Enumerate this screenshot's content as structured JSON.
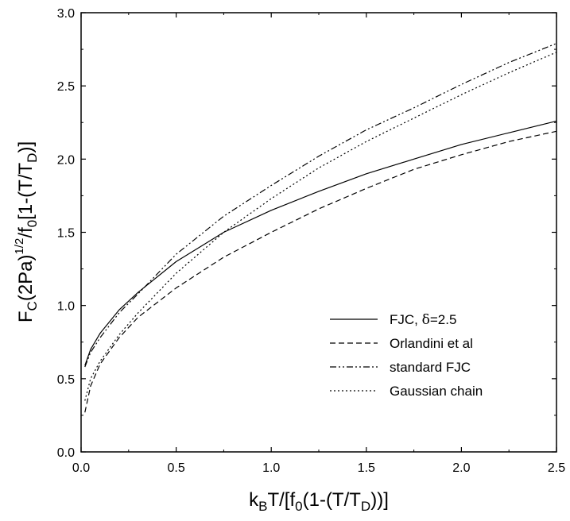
{
  "chart_data": {
    "type": "line",
    "xlim": [
      0.0,
      2.5
    ],
    "ylim": [
      0.0,
      3.0
    ],
    "x_ticks": [
      "0.0",
      "0.5",
      "1.0",
      "1.5",
      "2.0",
      "2.5"
    ],
    "y_ticks": [
      "0.0",
      "0.5",
      "1.0",
      "1.5",
      "2.0",
      "2.5",
      "3.0"
    ],
    "xlabel": {
      "main": "k",
      "sub1": "B",
      "mid": "T/[f",
      "sub2": "0",
      "mid2": "(1-(T/T",
      "sub3": "D",
      "end": "))]"
    },
    "ylabel": {
      "main": "F",
      "sub1": "C",
      "mid": "(2Pa)",
      "sup": "1/2",
      "mid2": "/f",
      "sub2": "0",
      "mid3": "[1-(T/T",
      "sub3": "D",
      "end": ")]"
    },
    "legend": {
      "position": "lower-right",
      "entries": [
        {
          "prefix": "FJC, ",
          "symbol": "δ",
          "suffix": "=2.5",
          "style": "solid"
        },
        {
          "prefix": "Orlandini et al",
          "symbol": "",
          "suffix": "",
          "style": "dash"
        },
        {
          "prefix": "standard FJC",
          "symbol": "",
          "suffix": "",
          "style": "dashdotdot"
        },
        {
          "prefix": "Gaussian chain",
          "symbol": "",
          "suffix": "",
          "style": "dot"
        }
      ]
    },
    "series": [
      {
        "style": "solid",
        "x": [
          0.02,
          0.05,
          0.1,
          0.2,
          0.3,
          0.5,
          0.75,
          1.0,
          1.25,
          1.5,
          1.75,
          2.0,
          2.25,
          2.5
        ],
        "y": [
          0.59,
          0.7,
          0.81,
          0.97,
          1.09,
          1.3,
          1.5,
          1.65,
          1.78,
          1.9,
          2.0,
          2.1,
          2.18,
          2.26
        ]
      },
      {
        "style": "dash",
        "x": [
          0.02,
          0.05,
          0.1,
          0.2,
          0.3,
          0.5,
          0.75,
          1.0,
          1.25,
          1.5,
          1.75,
          2.0,
          2.25,
          2.5
        ],
        "y": [
          0.27,
          0.45,
          0.6,
          0.78,
          0.92,
          1.12,
          1.33,
          1.5,
          1.66,
          1.8,
          1.93,
          2.03,
          2.12,
          2.19
        ]
      },
      {
        "style": "dashdotdot",
        "x": [
          0.02,
          0.05,
          0.1,
          0.2,
          0.3,
          0.5,
          0.75,
          1.0,
          1.25,
          1.5,
          1.75,
          2.0,
          2.25,
          2.5
        ],
        "y": [
          0.58,
          0.68,
          0.78,
          0.95,
          1.08,
          1.35,
          1.61,
          1.82,
          2.02,
          2.2,
          2.35,
          2.51,
          2.66,
          2.79
        ]
      },
      {
        "style": "dot",
        "x": [
          0.02,
          0.05,
          0.1,
          0.2,
          0.3,
          0.5,
          0.75,
          1.0,
          1.25,
          1.5,
          1.75,
          2.0,
          2.25,
          2.5
        ],
        "y": [
          0.35,
          0.5,
          0.62,
          0.8,
          0.95,
          1.22,
          1.5,
          1.73,
          1.94,
          2.12,
          2.28,
          2.44,
          2.59,
          2.73
        ]
      }
    ]
  }
}
